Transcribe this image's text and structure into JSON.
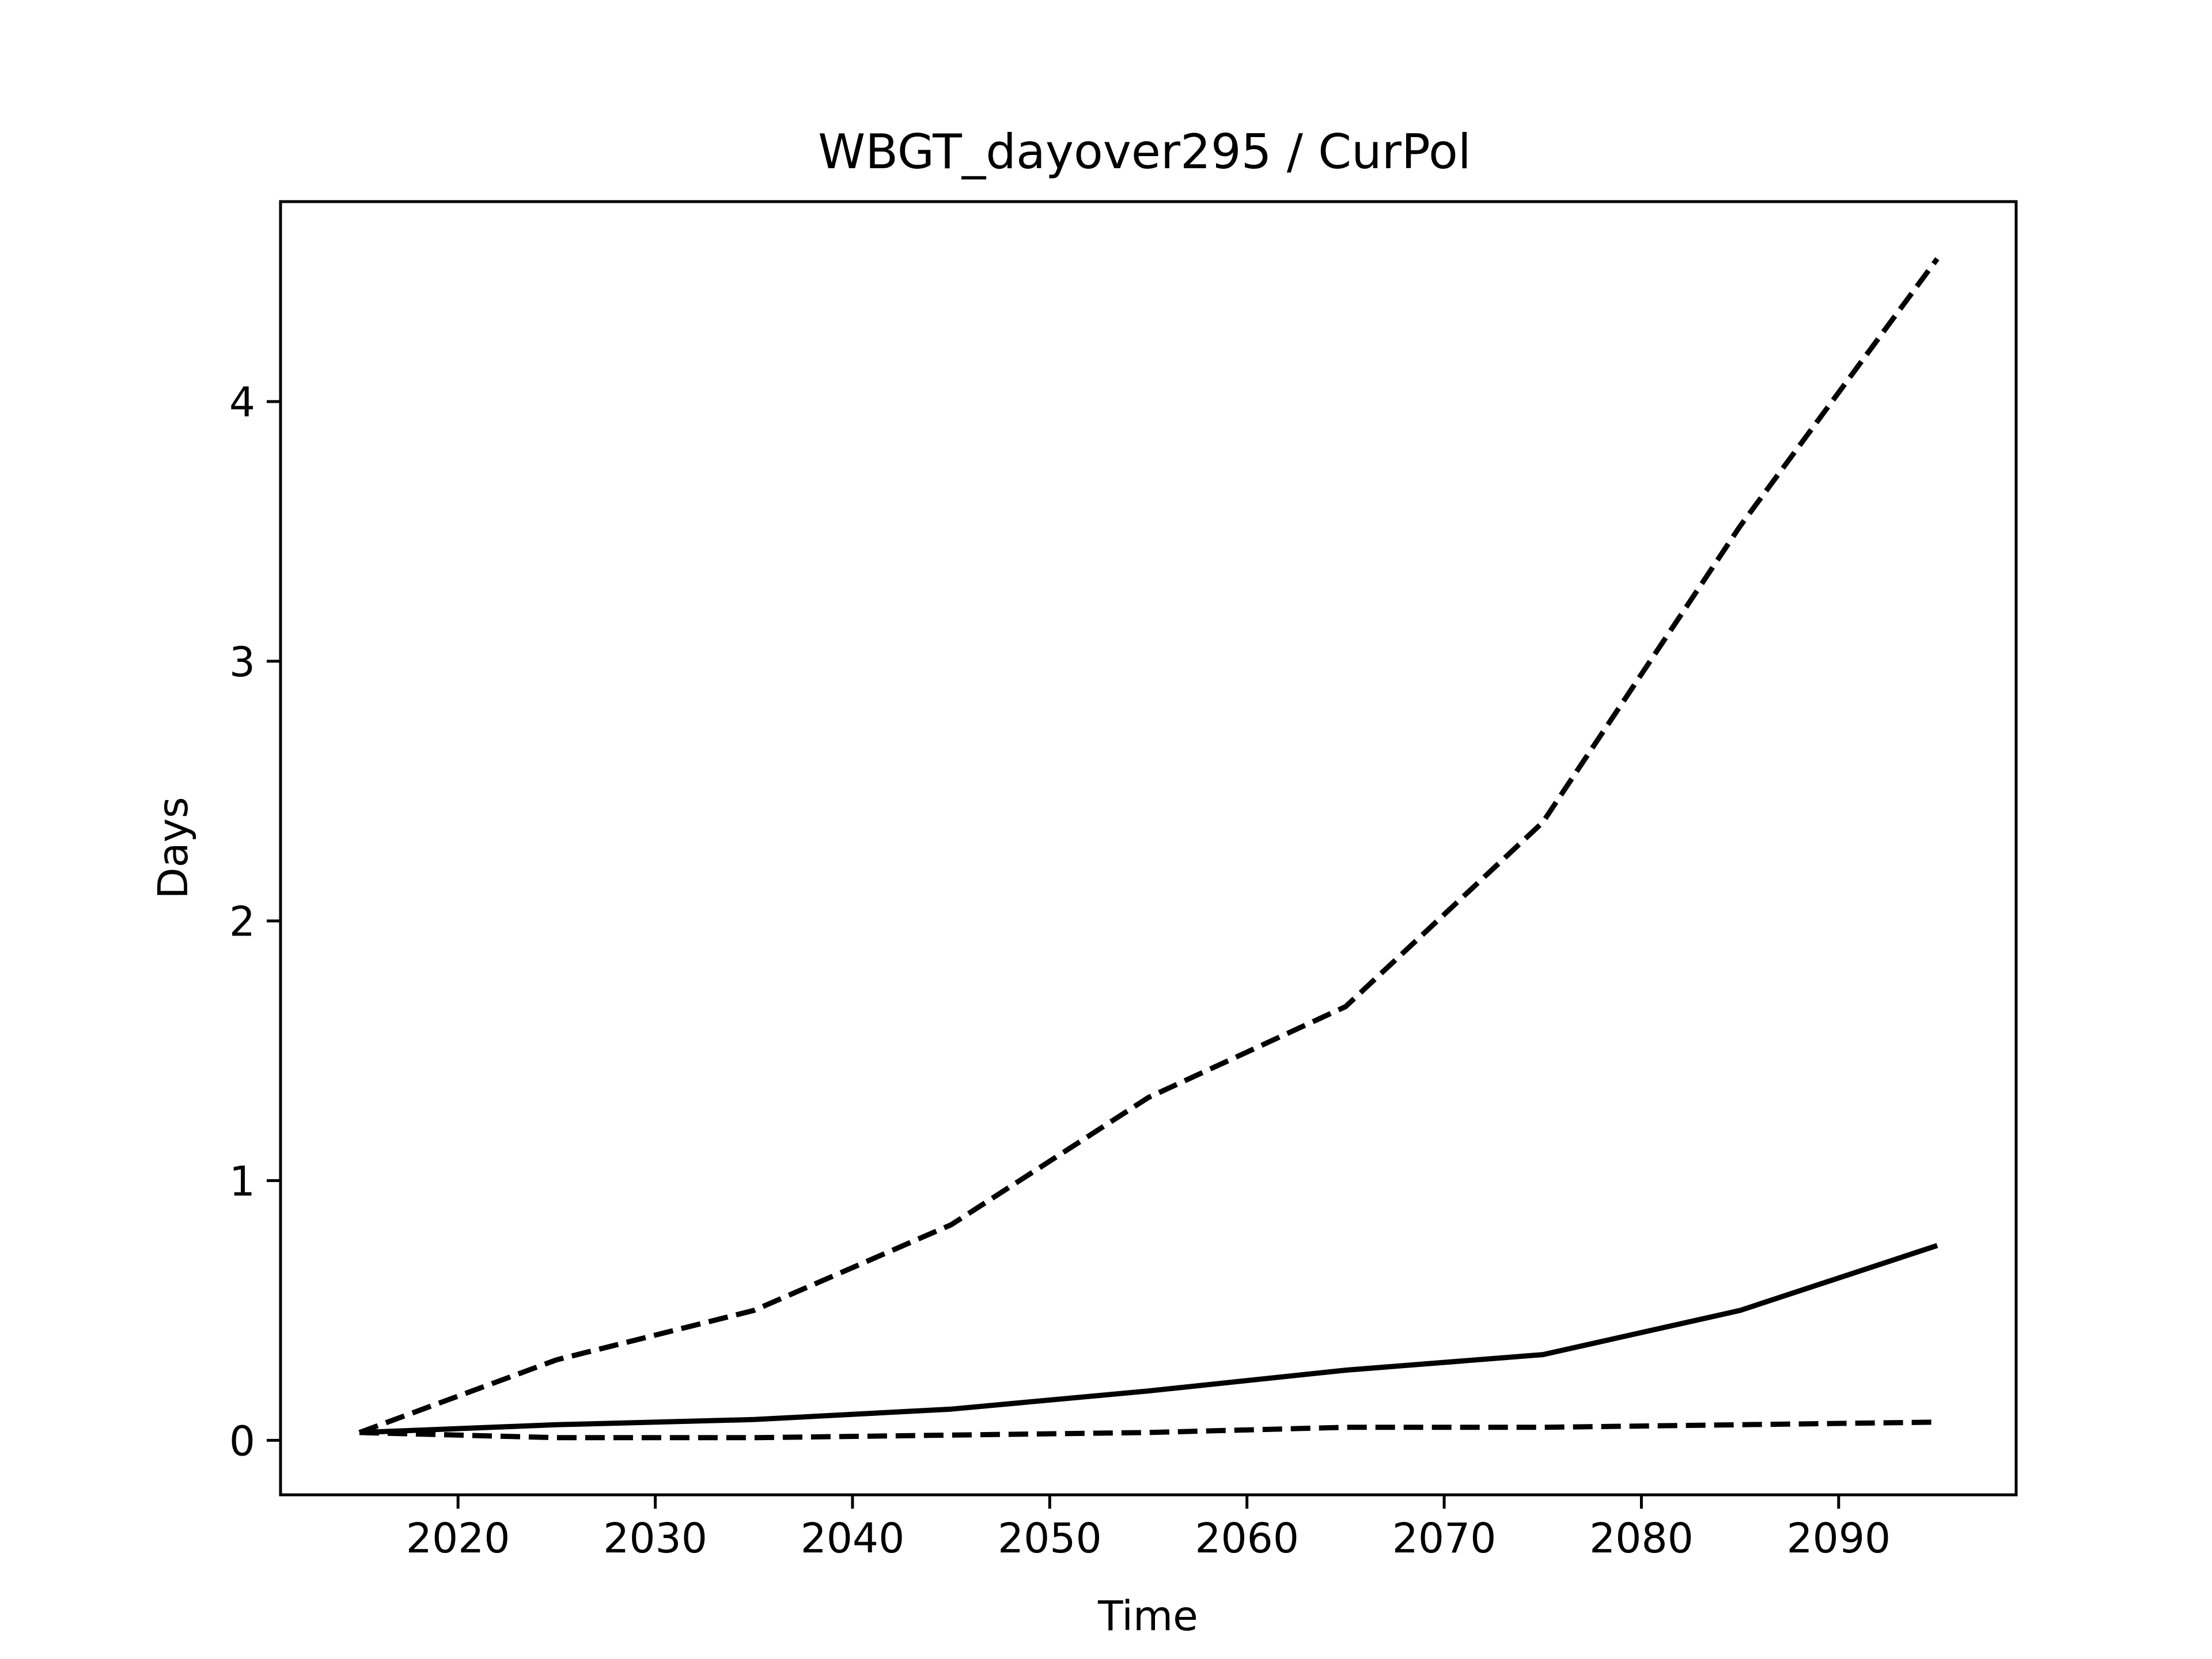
{
  "chart_data": {
    "type": "line",
    "title": "WBGT_dayover295 / CurPol",
    "xlabel": "Time",
    "ylabel": "Days",
    "xlim": [
      2011,
      2099
    ],
    "ylim": [
      -0.21,
      4.77
    ],
    "xticks": [
      2020,
      2030,
      2040,
      2050,
      2060,
      2070,
      2080,
      2090
    ],
    "yticks": [
      0,
      1,
      2,
      3,
      4
    ],
    "grid": false,
    "legend": "none",
    "x": [
      2015,
      2025,
      2035,
      2045,
      2055,
      2065,
      2075,
      2085,
      2095
    ],
    "series": [
      {
        "style": "solid",
        "color": "#000000",
        "values": [
          0.03,
          0.06,
          0.08,
          0.12,
          0.19,
          0.27,
          0.33,
          0.5,
          0.75
        ]
      },
      {
        "style": "dashed",
        "color": "#000000",
        "values": [
          0.03,
          0.31,
          0.5,
          0.83,
          1.32,
          1.67,
          2.38,
          3.52,
          4.55
        ]
      },
      {
        "style": "dashed",
        "color": "#000000",
        "values": [
          0.03,
          0.01,
          0.01,
          0.02,
          0.03,
          0.05,
          0.05,
          0.06,
          0.07
        ]
      }
    ]
  }
}
